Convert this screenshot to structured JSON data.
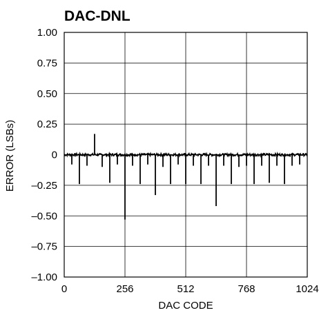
{
  "chart_data": {
    "type": "line",
    "title": "DAC-DNL",
    "xlabel": "DAC CODE",
    "ylabel": "ERROR (LSBs)",
    "xlim": [
      0,
      1024
    ],
    "ylim": [
      -1.0,
      1.0
    ],
    "x_ticks": [
      0,
      256,
      512,
      768,
      1024
    ],
    "x_tick_labels": [
      "0",
      "256",
      "512",
      "768",
      "1024"
    ],
    "y_ticks": [
      1.0,
      0.75,
      0.5,
      0.25,
      0,
      -0.25,
      -0.5,
      -0.75,
      -1.0
    ],
    "y_tick_labels": [
      "1.00",
      "0.75",
      "0.50",
      "0.25",
      "0",
      "–0.25",
      "–0.50",
      "–0.75",
      "–1.00"
    ],
    "grid": true,
    "baseline_noise_band": [
      -0.01,
      0.01
    ],
    "series": [
      {
        "x": [
          32,
          64,
          96,
          128,
          160,
          192,
          224,
          256,
          288,
          320,
          352,
          384,
          416,
          448,
          480,
          512,
          544,
          576,
          608,
          640,
          672,
          704,
          736,
          768,
          800,
          832,
          864,
          896,
          928,
          960,
          992
        ],
        "y": [
          -0.08,
          -0.24,
          -0.09,
          0.17,
          -0.1,
          -0.23,
          -0.08,
          -0.53,
          -0.09,
          -0.24,
          -0.08,
          -0.33,
          -0.1,
          -0.24,
          -0.08,
          -0.24,
          -0.09,
          -0.24,
          -0.09,
          -0.42,
          -0.09,
          -0.24,
          -0.1,
          -0.09,
          -0.24,
          -0.09,
          -0.23,
          -0.09,
          -0.24,
          -0.09,
          -0.08
        ]
      }
    ],
    "colors": {
      "line": "#000000",
      "grid": "#000000",
      "background": "#ffffff"
    }
  }
}
